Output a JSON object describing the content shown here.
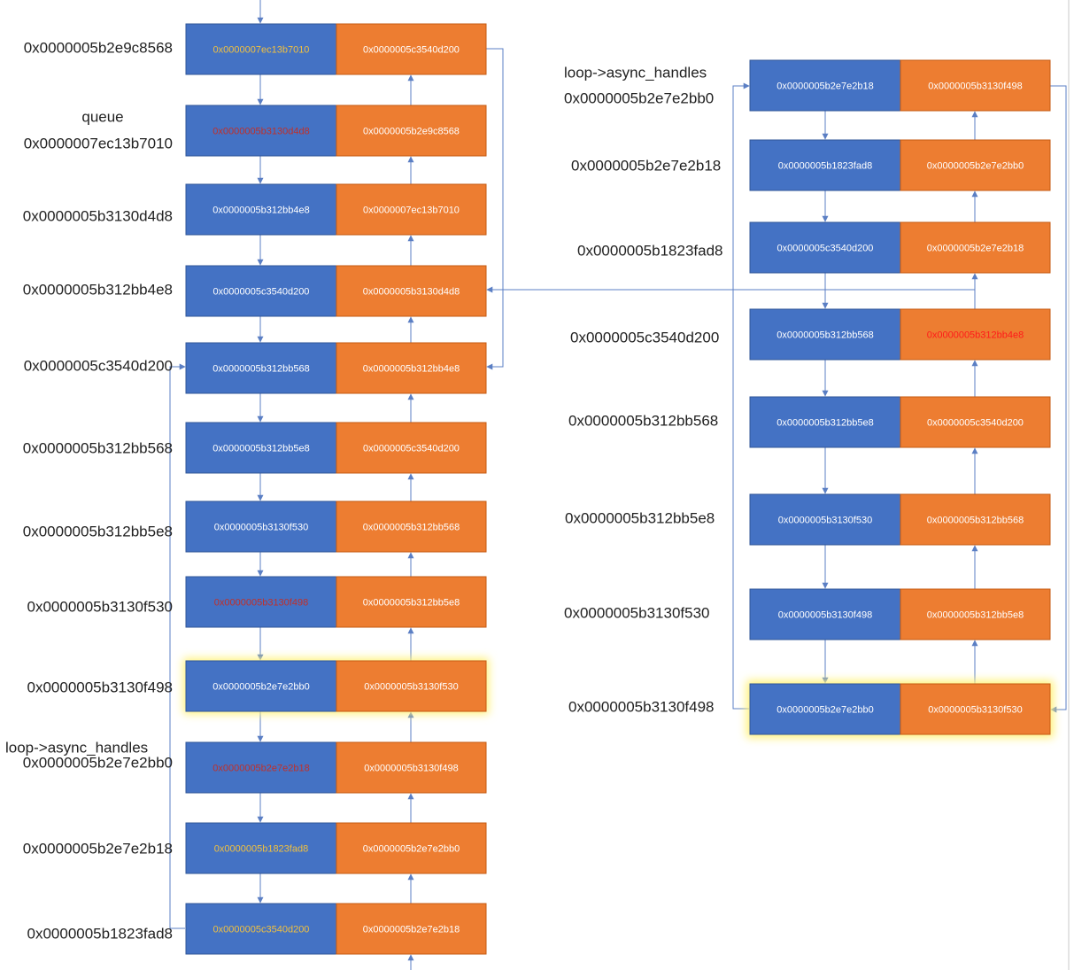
{
  "colors": {
    "next_fill": "#4472c4",
    "prev_fill": "#ed7d31",
    "link": "#5b7fc4",
    "highlight_glow": "#fff27a"
  },
  "left_column": {
    "nodes": [
      {
        "address": "0x0000005b2e9c8568",
        "next": "0x0000007ec13b7010",
        "prev": "0x0000005c3540d200",
        "next_color": "yellow"
      },
      {
        "pre_label": "queue",
        "address": "0x0000007ec13b7010",
        "next": "0x0000005b3130d4d8",
        "prev": "0x0000005b2e9c8568",
        "next_color": "red"
      },
      {
        "address": "0x0000005b3130d4d8",
        "next": "0x0000005b312bb4e8",
        "prev": "0x0000007ec13b7010"
      },
      {
        "address": "0x0000005b312bb4e8",
        "next": "0x0000005c3540d200",
        "prev": "0x0000005b3130d4d8"
      },
      {
        "address": "0x0000005c3540d200",
        "next": "0x0000005b312bb568",
        "prev": "0x0000005b312bb4e8"
      },
      {
        "address": "0x0000005b312bb568",
        "next": "0x0000005b312bb5e8",
        "prev": "0x0000005c3540d200"
      },
      {
        "address": "0x0000005b312bb5e8",
        "next": "0x0000005b3130f530",
        "prev": "0x0000005b312bb568"
      },
      {
        "address": "0x0000005b3130f530",
        "next": "0x0000005b3130f498",
        "prev": "0x0000005b312bb5e8",
        "next_color": "red"
      },
      {
        "address": "0x0000005b3130f498",
        "next": "0x0000005b2e7e2bb0",
        "prev": "0x0000005b3130f530",
        "highlight": true
      },
      {
        "pre_label": "loop->async_handles",
        "address": "0x0000005b2e7e2bb0",
        "next": "0x0000005b2e7e2b18",
        "prev": "0x0000005b3130f498",
        "next_color": "red"
      },
      {
        "address": "0x0000005b2e7e2b18",
        "next": "0x0000005b1823fad8",
        "prev": "0x0000005b2e7e2bb0",
        "next_color": "yellow"
      },
      {
        "address": "0x0000005b1823fad8",
        "next": "0x0000005c3540d200",
        "prev": "0x0000005b2e7e2b18",
        "next_color": "yellow"
      }
    ]
  },
  "right_column": {
    "nodes": [
      {
        "pre_label": "loop->async_handles",
        "address": "0x0000005b2e7e2bb0",
        "next": "0x0000005b2e7e2b18",
        "prev": "0x0000005b3130f498"
      },
      {
        "address": "0x0000005b2e7e2b18",
        "next": "0x0000005b1823fad8",
        "prev": "0x0000005b2e7e2bb0"
      },
      {
        "address": "0x0000005b1823fad8",
        "next": "0x0000005c3540d200",
        "prev": "0x0000005b2e7e2b18"
      },
      {
        "address": "0x0000005c3540d200",
        "next": "0x0000005b312bb568",
        "prev": "0x0000005b312bb4e8",
        "prev_color": "brightred"
      },
      {
        "address": "0x0000005b312bb568",
        "next": "0x0000005b312bb5e8",
        "prev": "0x0000005c3540d200"
      },
      {
        "address": "0x0000005b312bb5e8",
        "next": "0x0000005b3130f530",
        "prev": "0x0000005b312bb568"
      },
      {
        "address": "0x0000005b3130f530",
        "next": "0x0000005b3130f498",
        "prev": "0x0000005b312bb5e8"
      },
      {
        "address": "0x0000005b3130f498",
        "next": "0x0000005b2e7e2bb0",
        "prev": "0x0000005b3130f530",
        "highlight": true
      }
    ]
  }
}
